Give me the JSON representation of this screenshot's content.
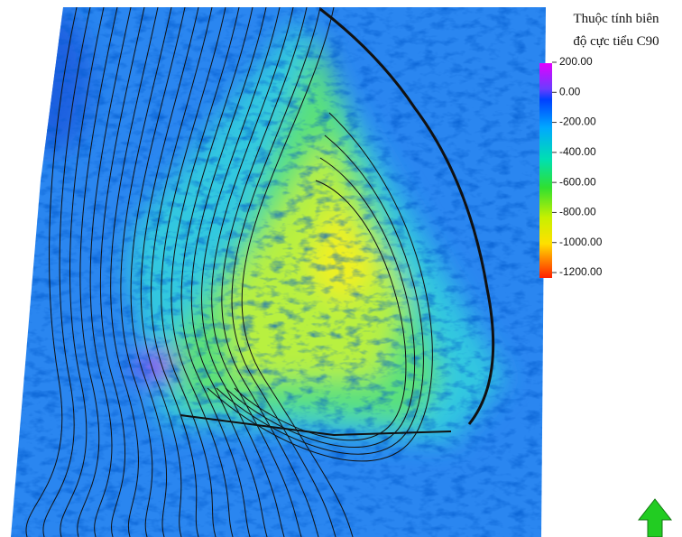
{
  "legend": {
    "title_lines": [
      "Thuộc tính biên",
      "độ cực tiểu C90"
    ],
    "labels": [
      "200.00",
      "0.00",
      "-200.00",
      "-400.00",
      "-600.00",
      "-800.00",
      "-1000.00",
      "-1200.00"
    ]
  }
}
